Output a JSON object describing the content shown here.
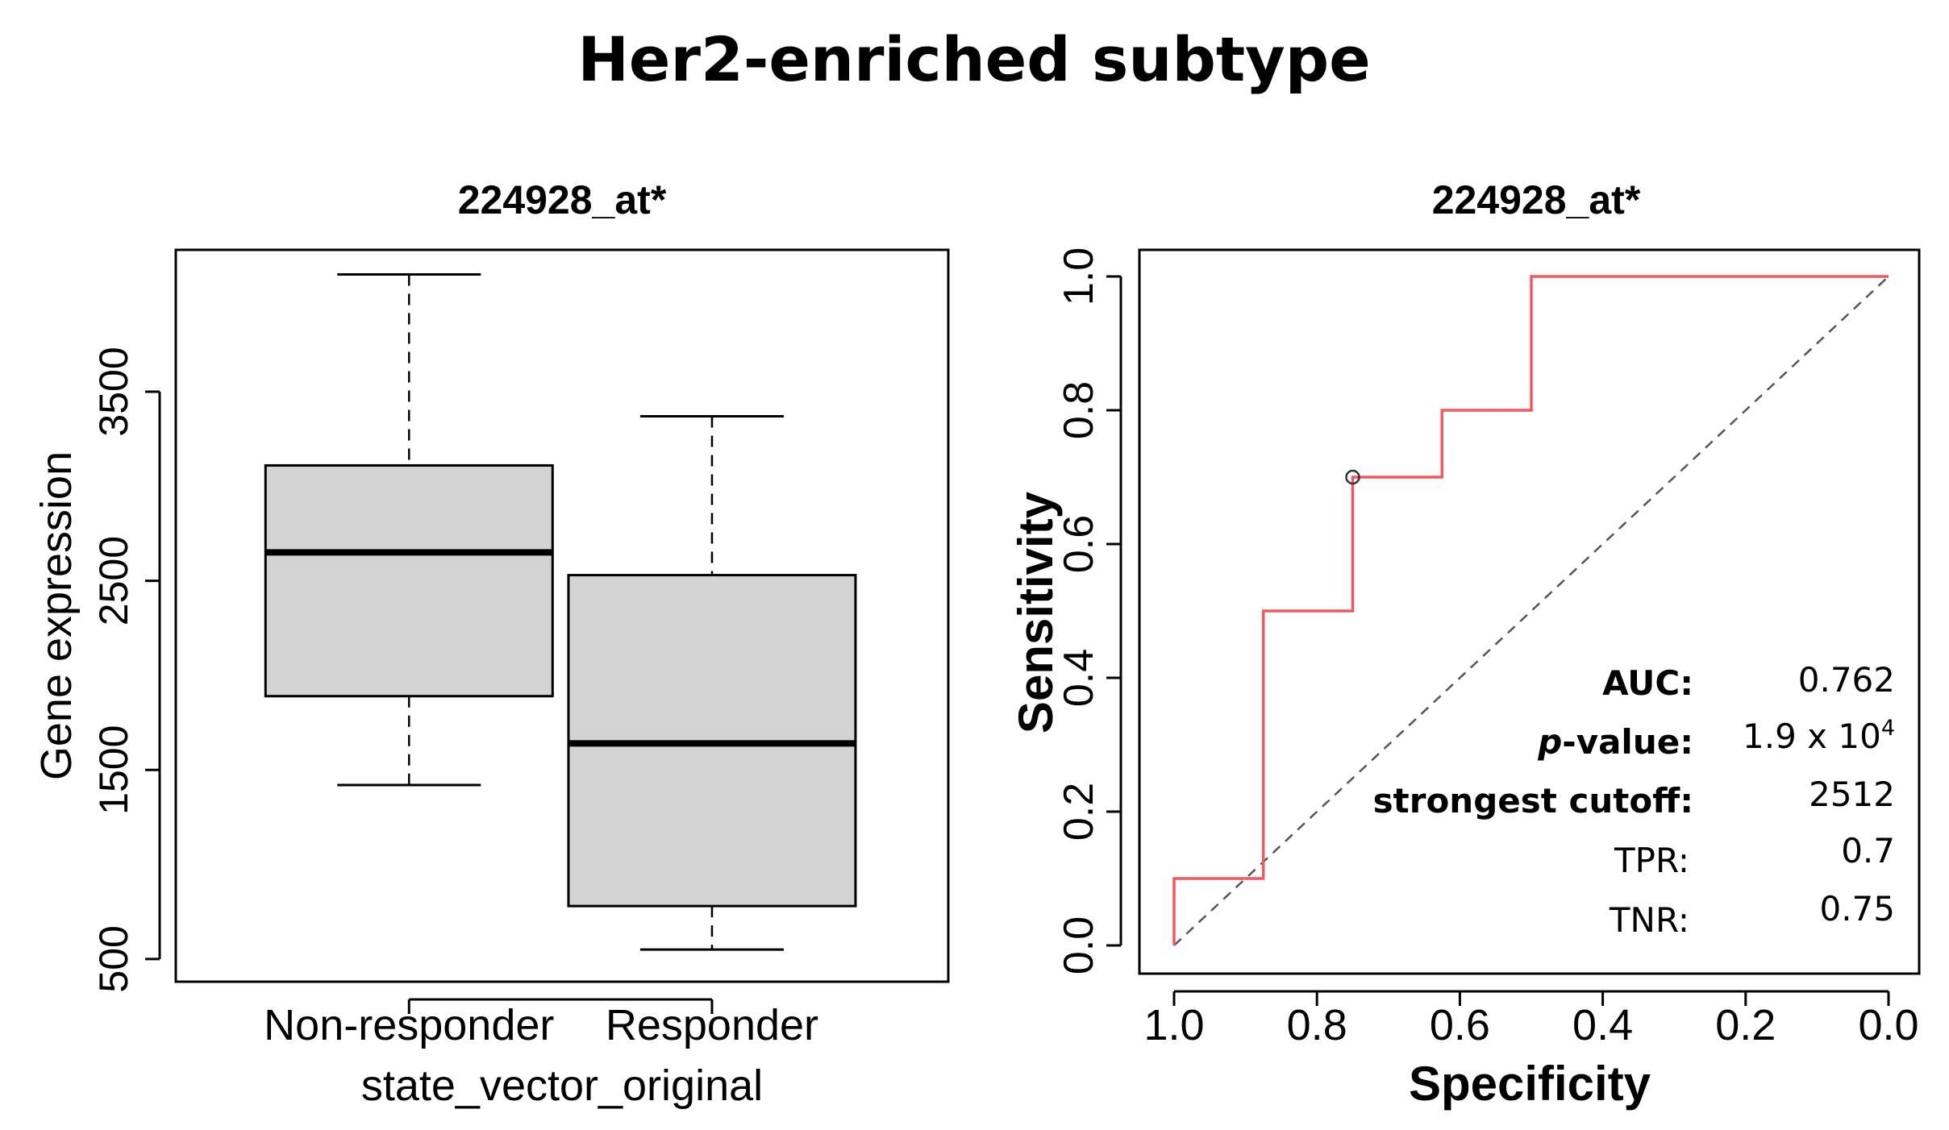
{
  "figure_title": "Her2-enriched subtype",
  "chart_data": [
    {
      "type": "box",
      "title": "224928_at*",
      "xlabel": "state_vector_original",
      "ylabel": "Gene expression",
      "ylim": [
        380,
        4250
      ],
      "yticks": [
        500,
        1500,
        2500,
        3500
      ],
      "ytick_labels": [
        "500",
        "1500",
        "2500",
        "3500"
      ],
      "categories": [
        "Non-responder",
        "Responder"
      ],
      "boxes": [
        {
          "name": "Non-responder",
          "whisker_low": 1420,
          "q1": 1890,
          "median": 2650,
          "q3": 3110,
          "whisker_high": 4120
        },
        {
          "name": "Responder",
          "whisker_low": 550,
          "q1": 780,
          "median": 1640,
          "q3": 2530,
          "whisker_high": 3370
        }
      ],
      "box_fill": "#d3d3d3"
    },
    {
      "type": "line",
      "subtype": "roc",
      "title": "224928_at*",
      "xlabel": "Specificity",
      "ylabel": "Sensitivity",
      "xlim": [
        1.0,
        0.0
      ],
      "ylim": [
        0.0,
        1.0
      ],
      "xticks": [
        "1.0",
        "0.8",
        "0.6",
        "0.4",
        "0.2",
        "0.0"
      ],
      "yticks": [
        "0.0",
        "0.2",
        "0.4",
        "0.6",
        "0.8",
        "1.0"
      ],
      "series": [
        {
          "name": "ROC",
          "color": "#f0595e",
          "specificity": [
            1.0,
            1.0,
            0.875,
            0.875,
            0.75,
            0.75,
            0.625,
            0.625,
            0.5,
            0.5,
            0.0
          ],
          "sensitivity": [
            0.0,
            0.1,
            0.1,
            0.5,
            0.5,
            0.7,
            0.7,
            0.8,
            0.8,
            1.0,
            1.0
          ]
        }
      ],
      "reference_line": {
        "style": "dashed",
        "color": "#555555",
        "from": [
          1.0,
          0.0
        ],
        "to": [
          0.0,
          1.0
        ]
      },
      "cutoff_point": {
        "specificity": 0.75,
        "sensitivity": 0.7
      },
      "annotations": {
        "auc_label": "AUC:",
        "auc_value": "0.762",
        "pvalue_label_italic": "p",
        "pvalue_label_rest": "-value:",
        "pvalue_base": "1.9 x 10",
        "pvalue_exp": "4",
        "cutoff_label": "strongest cutoff:",
        "cutoff_value": "2512",
        "tpr_label": "TPR:",
        "tpr_value": "0.7",
        "tnr_label": "TNR:",
        "tnr_value": "0.75"
      }
    }
  ]
}
